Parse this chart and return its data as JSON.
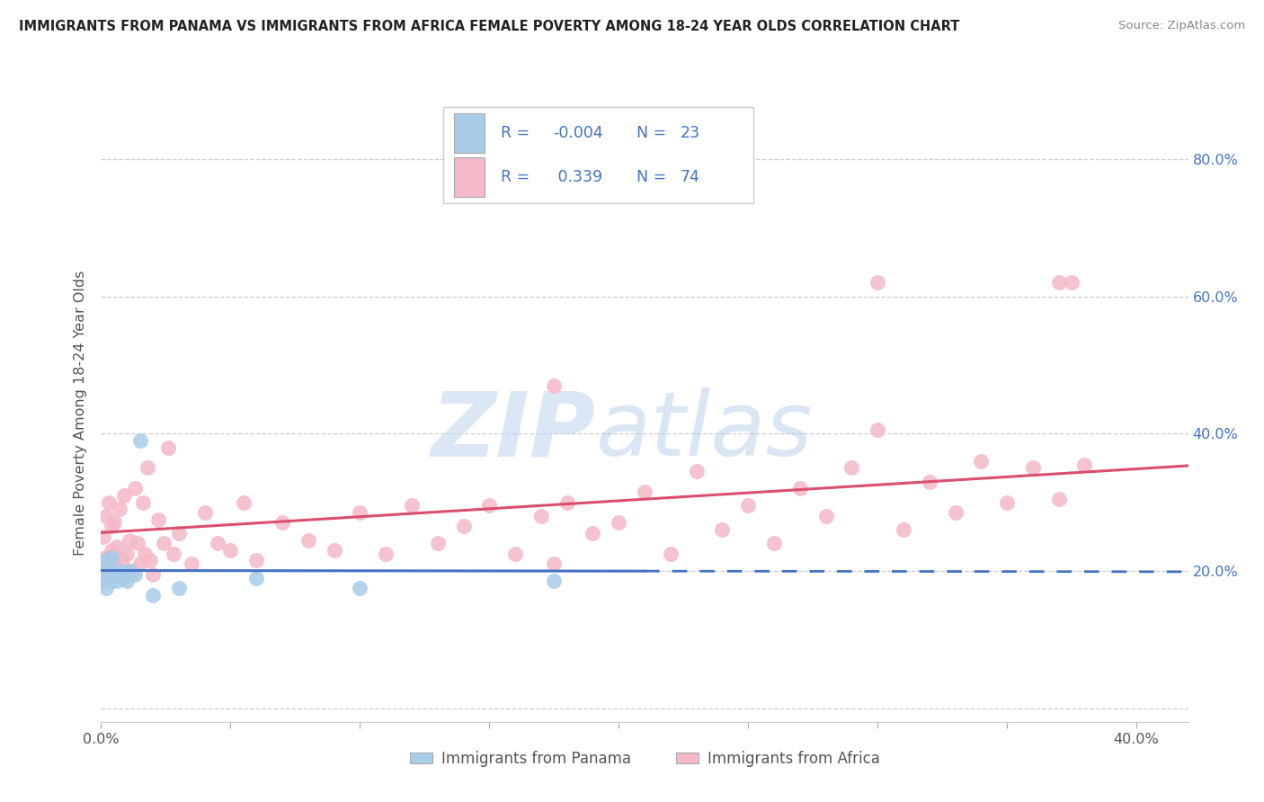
{
  "title": "IMMIGRANTS FROM PANAMA VS IMMIGRANTS FROM AFRICA FEMALE POVERTY AMONG 18-24 YEAR OLDS CORRELATION CHART",
  "source": "Source: ZipAtlas.com",
  "ylabel": "Female Poverty Among 18-24 Year Olds",
  "xlim": [
    0.0,
    0.42
  ],
  "ylim": [
    -0.02,
    0.88
  ],
  "r_panama": -0.004,
  "n_panama": 23,
  "r_africa": 0.339,
  "n_africa": 74,
  "color_panama": "#a8cce8",
  "color_africa": "#f4b8c8",
  "line_color_panama": "#4472c4",
  "line_color_africa": "#d94f6e",
  "legend_text_color": "#4472c4",
  "ytick_color": "#4472c4",
  "panama_x": [
    0.0,
    0.001,
    0.001,
    0.002,
    0.002,
    0.002,
    0.003,
    0.003,
    0.004,
    0.004,
    0.005,
    0.006,
    0.007,
    0.008,
    0.01,
    0.011,
    0.013,
    0.015,
    0.02,
    0.03,
    0.06,
    0.1,
    0.175
  ],
  "panama_y": [
    0.185,
    0.195,
    0.21,
    0.215,
    0.205,
    0.175,
    0.19,
    0.2,
    0.185,
    0.22,
    0.195,
    0.185,
    0.2,
    0.19,
    0.185,
    0.2,
    0.195,
    0.39,
    0.165,
    0.175,
    0.19,
    0.175,
    0.185
  ],
  "africa_x": [
    0.0,
    0.001,
    0.001,
    0.002,
    0.002,
    0.003,
    0.003,
    0.004,
    0.004,
    0.005,
    0.005,
    0.006,
    0.007,
    0.008,
    0.009,
    0.01,
    0.011,
    0.012,
    0.013,
    0.014,
    0.015,
    0.016,
    0.017,
    0.018,
    0.019,
    0.02,
    0.022,
    0.024,
    0.026,
    0.028,
    0.03,
    0.035,
    0.04,
    0.045,
    0.05,
    0.055,
    0.06,
    0.07,
    0.08,
    0.09,
    0.1,
    0.11,
    0.12,
    0.13,
    0.14,
    0.15,
    0.16,
    0.17,
    0.175,
    0.18,
    0.19,
    0.2,
    0.21,
    0.22,
    0.23,
    0.24,
    0.25,
    0.26,
    0.27,
    0.28,
    0.29,
    0.3,
    0.31,
    0.32,
    0.33,
    0.34,
    0.35,
    0.36,
    0.37,
    0.38,
    0.3,
    0.175,
    0.37,
    0.375
  ],
  "africa_y": [
    0.215,
    0.2,
    0.25,
    0.22,
    0.28,
    0.195,
    0.3,
    0.23,
    0.265,
    0.21,
    0.27,
    0.235,
    0.29,
    0.215,
    0.31,
    0.225,
    0.245,
    0.2,
    0.32,
    0.24,
    0.21,
    0.3,
    0.225,
    0.35,
    0.215,
    0.195,
    0.275,
    0.24,
    0.38,
    0.225,
    0.255,
    0.21,
    0.285,
    0.24,
    0.23,
    0.3,
    0.215,
    0.27,
    0.245,
    0.23,
    0.285,
    0.225,
    0.295,
    0.24,
    0.265,
    0.295,
    0.225,
    0.28,
    0.21,
    0.3,
    0.255,
    0.27,
    0.315,
    0.225,
    0.345,
    0.26,
    0.295,
    0.24,
    0.32,
    0.28,
    0.35,
    0.405,
    0.26,
    0.33,
    0.285,
    0.36,
    0.3,
    0.35,
    0.305,
    0.355,
    0.62,
    0.47,
    0.62,
    0.62
  ],
  "panama_line_x": [
    0.0,
    0.21
  ],
  "panama_line_style": "solid",
  "africa_line_x": [
    0.0,
    0.42
  ]
}
